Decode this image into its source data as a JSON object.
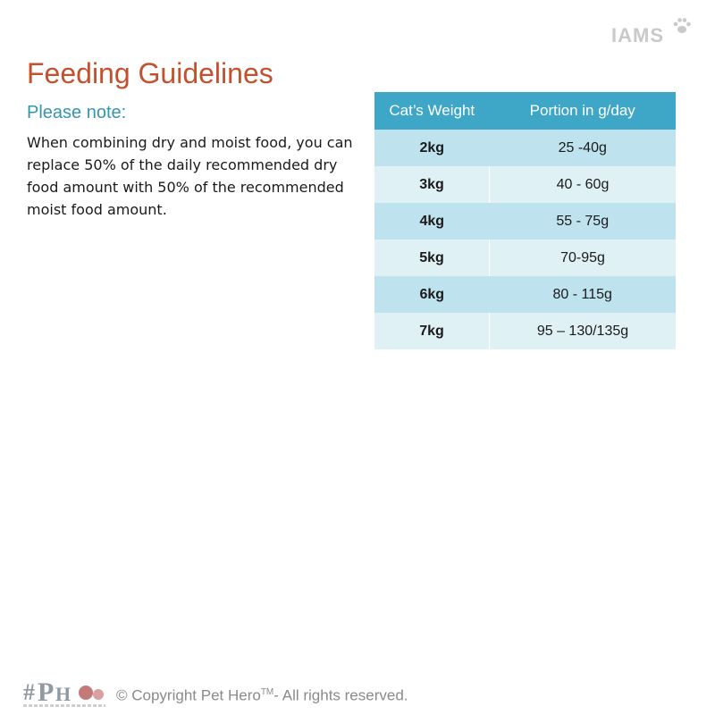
{
  "brand": {
    "name": "IAMS",
    "color": "#c9c9c9"
  },
  "title": "Feeding Guidelines",
  "note": {
    "heading": "Please note:",
    "body": "When combining dry and moist food, you can replace 50% of the daily recommended dry food amount with 50% of the recommended moist food amount."
  },
  "table": {
    "headers": {
      "weight": "Cat’s Weight",
      "portion": "Portion in g/day"
    },
    "rows": [
      {
        "weight": "2kg",
        "portion": "25 -40g"
      },
      {
        "weight": "3kg",
        "portion": "40 - 60g"
      },
      {
        "weight": "4kg",
        "portion": "55 - 75g"
      },
      {
        "weight": "5kg",
        "portion": "70-95g"
      },
      {
        "weight": "6kg",
        "portion": "80 - 115g"
      },
      {
        "weight": "7kg",
        "portion": "95 – 130/135g"
      }
    ]
  },
  "footer": {
    "copyright_prefix": "© Copyright Pet Hero",
    "copyright_tm": "TM",
    "copyright_suffix": "- All rights reserved."
  },
  "colors": {
    "title": "#c4512d",
    "note_heading": "#3595b0",
    "table_header": "#3ea6c6",
    "row_dark": "#bfe3ee",
    "row_light": "#e0f1f6"
  }
}
